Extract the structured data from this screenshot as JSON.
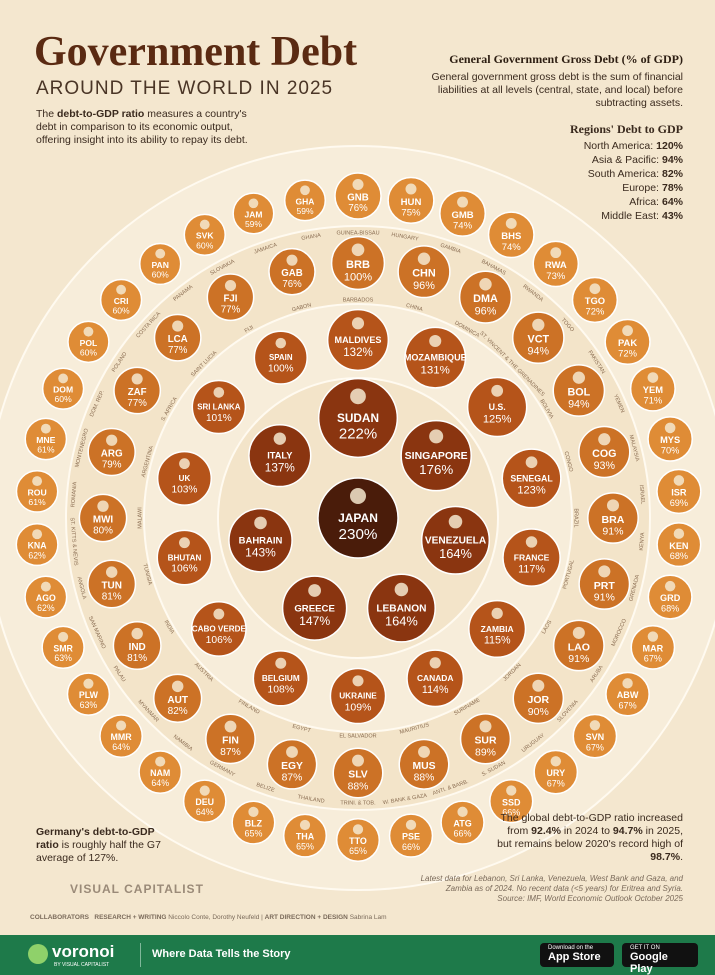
{
  "chart_data": {
    "type": "bubble",
    "title": "Government Debt",
    "subtitle": "AROUND THE WORLD IN 2025",
    "ring_colors": [
      "#4a1c0a",
      "#8a3510",
      "#b5541a",
      "#cc7226",
      "#df8c36"
    ],
    "points": [
      {
        "name": "JAPAN",
        "value": 230,
        "value_label": "230%"
      },
      {
        "name": "SUDAN",
        "value": 222,
        "value_label": "222%"
      },
      {
        "name": "SINGAPORE",
        "value": 176,
        "value_label": "176%"
      },
      {
        "name": "VENEZUELA",
        "value": 164,
        "value_label": "164%"
      },
      {
        "name": "LEBANON",
        "value": 164,
        "value_label": "164%"
      },
      {
        "name": "GREECE",
        "value": 147,
        "value_label": "147%"
      },
      {
        "name": "BAHRAIN",
        "value": 143,
        "value_label": "143%"
      },
      {
        "name": "ITALY",
        "value": 137,
        "value_label": "137%"
      },
      {
        "name": "MALDIVES",
        "value": 132,
        "value_label": "132%"
      },
      {
        "name": "MOZAMBIQUE",
        "value": 131,
        "value_label": "131%"
      },
      {
        "name": "U.S.",
        "value": 125,
        "value_label": "125%"
      },
      {
        "name": "SENEGAL",
        "value": 123,
        "value_label": "123%"
      },
      {
        "name": "FRANCE",
        "value": 117,
        "value_label": "117%"
      },
      {
        "name": "ZAMBIA",
        "value": 115,
        "value_label": "115%"
      },
      {
        "name": "CANADA",
        "value": 114,
        "value_label": "114%"
      },
      {
        "name": "UKRAINE",
        "value": 109,
        "value_label": "109%"
      },
      {
        "name": "BELGIUM",
        "value": 108,
        "value_label": "108%"
      },
      {
        "name": "CABO VERDE",
        "value": 106,
        "value_label": "106%"
      },
      {
        "name": "BHUTAN",
        "value": 106,
        "value_label": "106%"
      },
      {
        "name": "UK",
        "value": 103,
        "value_label": "103%"
      },
      {
        "name": "SRI LANKA",
        "value": 101,
        "value_label": "101%"
      },
      {
        "name": "SPAIN",
        "value": 100,
        "value_label": "100%"
      },
      {
        "code": "BRB",
        "name": "BARBADOS",
        "value": 100,
        "value_label": "100%"
      },
      {
        "code": "CHN",
        "name": "CHINA",
        "value": 96,
        "value_label": "96%"
      },
      {
        "code": "DMA",
        "name": "DOMINICA",
        "value": 96,
        "value_label": "96%"
      },
      {
        "code": "VCT",
        "name": "ST. VINCENT & THE GRENADINES",
        "value": 94,
        "value_label": "94%"
      },
      {
        "code": "BOL",
        "name": "BOLIVIA",
        "value": 94,
        "value_label": "94%"
      },
      {
        "code": "COG",
        "name": "CONGO",
        "value": 93,
        "value_label": "93%"
      },
      {
        "code": "BRA",
        "name": "BRAZIL",
        "value": 91,
        "value_label": "91%"
      },
      {
        "code": "PRT",
        "name": "PORTUGAL",
        "value": 91,
        "value_label": "91%"
      },
      {
        "code": "LAO",
        "name": "LAOS",
        "value": 91,
        "value_label": "91%"
      },
      {
        "code": "JOR",
        "name": "JORDAN",
        "value": 90,
        "value_label": "90%"
      },
      {
        "code": "SUR",
        "name": "SURINAME",
        "value": 89,
        "value_label": "89%"
      },
      {
        "code": "MUS",
        "name": "MAURITIUS",
        "value": 88,
        "value_label": "88%"
      },
      {
        "code": "SLV",
        "name": "EL SALVADOR",
        "value": 88,
        "value_label": "88%"
      },
      {
        "code": "EGY",
        "name": "EGYPT",
        "value": 87,
        "value_label": "87%"
      },
      {
        "code": "FIN",
        "name": "FINLAND",
        "value": 87,
        "value_label": "87%"
      },
      {
        "code": "AUT",
        "name": "AUSTRIA",
        "value": 82,
        "value_label": "82%"
      },
      {
        "code": "IND",
        "name": "INDIA",
        "value": 81,
        "value_label": "81%"
      },
      {
        "code": "TUN",
        "name": "TUNISIA",
        "value": 81,
        "value_label": "81%"
      },
      {
        "code": "MWI",
        "name": "MALAWI",
        "value": 80,
        "value_label": "80%"
      },
      {
        "code": "ARG",
        "name": "ARGENTINA",
        "value": 79,
        "value_label": "79%"
      },
      {
        "code": "ZAF",
        "name": "S. AFRICA",
        "value": 77,
        "value_label": "77%"
      },
      {
        "code": "LCA",
        "name": "SAINT LUCIA",
        "value": 77,
        "value_label": "77%"
      },
      {
        "code": "FJI",
        "name": "FIJI",
        "value": 77,
        "value_label": "77%"
      },
      {
        "code": "GAB",
        "name": "GABON",
        "value": 76,
        "value_label": "76%"
      },
      {
        "code": "GNB",
        "name": "GUINEA-BISSAU",
        "value": 76,
        "value_label": "76%"
      },
      {
        "code": "HUN",
        "name": "HUNGARY",
        "value": 75,
        "value_label": "75%"
      },
      {
        "code": "GMB",
        "name": "GAMBIA",
        "value": 74,
        "value_label": "74%"
      },
      {
        "code": "BHS",
        "name": "BAHAMAS",
        "value": 74,
        "value_label": "74%"
      },
      {
        "code": "RWA",
        "name": "RWANDA",
        "value": 73,
        "value_label": "73%"
      },
      {
        "code": "TGO",
        "name": "TOGO",
        "value": 72,
        "value_label": "72%"
      },
      {
        "code": "PAK",
        "name": "PAKISTAN",
        "value": 72,
        "value_label": "72%"
      },
      {
        "code": "YEM",
        "name": "YEMEN",
        "value": 71,
        "value_label": "71%"
      },
      {
        "code": "MYS",
        "name": "MALAYSIA",
        "value": 70,
        "value_label": "70%"
      },
      {
        "code": "ISR",
        "name": "ISRAEL",
        "value": 69,
        "value_label": "69%"
      },
      {
        "code": "KEN",
        "name": "KENYA",
        "value": 68,
        "value_label": "68%"
      },
      {
        "code": "GRD",
        "name": "GRENADA",
        "value": 68,
        "value_label": "68%"
      },
      {
        "code": "MAR",
        "name": "MOROCCO",
        "value": 67,
        "value_label": "67%"
      },
      {
        "code": "ABW",
        "name": "ARUBA",
        "value": 67,
        "value_label": "67%"
      },
      {
        "code": "SVN",
        "name": "SLOVENIA",
        "value": 67,
        "value_label": "67%"
      },
      {
        "code": "URY",
        "name": "URUGUAY",
        "value": 67,
        "value_label": "67%"
      },
      {
        "code": "SSD",
        "name": "S. SUDAN",
        "value": 66,
        "value_label": "66%"
      },
      {
        "code": "ATG",
        "name": "ANTI. & BARB.",
        "value": 66,
        "value_label": "66%"
      },
      {
        "code": "PSE",
        "name": "W. BANK & GAZA",
        "value": 66,
        "value_label": "66%"
      },
      {
        "code": "TTO",
        "name": "TRINI. & TOB.",
        "value": 65,
        "value_label": "65%"
      },
      {
        "code": "THA",
        "name": "THAILAND",
        "value": 65,
        "value_label": "65%"
      },
      {
        "code": "BLZ",
        "name": "BELIZE",
        "value": 65,
        "value_label": "65%"
      },
      {
        "code": "DEU",
        "name": "GERMANY",
        "value": 64,
        "value_label": "64%"
      },
      {
        "code": "NAM",
        "name": "NAMIBIA",
        "value": 64,
        "value_label": "64%"
      },
      {
        "code": "MMR",
        "name": "MYANMAR",
        "value": 64,
        "value_label": "64%"
      },
      {
        "code": "PLW",
        "name": "PALAU",
        "value": 63,
        "value_label": "63%"
      },
      {
        "code": "SMR",
        "name": "SAN MARINO",
        "value": 63,
        "value_label": "63%"
      },
      {
        "code": "AGO",
        "name": "ANGOLA",
        "value": 62,
        "value_label": "62%"
      },
      {
        "code": "KNA",
        "name": "ST. KITTS & NEVIS",
        "value": 62,
        "value_label": "62%"
      },
      {
        "code": "ROU",
        "name": "ROMANIA",
        "value": 61,
        "value_label": "61%"
      },
      {
        "code": "MNE",
        "name": "MONTENEGRO",
        "value": 61,
        "value_label": "61%"
      },
      {
        "code": "DOM",
        "name": "DOM. REP.",
        "value": 60,
        "value_label": "60%"
      },
      {
        "code": "POL",
        "name": "POLAND",
        "value": 60,
        "value_label": "60%"
      },
      {
        "code": "CRI",
        "name": "COSTA RICA",
        "value": 60,
        "value_label": "60%"
      },
      {
        "code": "PAN",
        "name": "PANAMA",
        "value": 60,
        "value_label": "60%"
      },
      {
        "code": "SVK",
        "name": "SLOVAKIA",
        "value": 60,
        "value_label": "60%"
      },
      {
        "code": "JAM",
        "name": "JAMAICA",
        "value": 59,
        "value_label": "59%"
      },
      {
        "code": "GHA",
        "name": "GHANA",
        "value": 59,
        "value_label": "59%"
      }
    ]
  },
  "intro": [
    "The ",
    "debt-to-GDP ratio",
    " measures a country's debt in comparison to its economic output, offering insight into its ability to repay its debt."
  ],
  "definition": {
    "title": "General Government Gross Debt (% of GDP)",
    "text": "General government gross debt is the sum of financial liabilities at all levels (central, state, and local) before subtracting assets."
  },
  "regions": {
    "title": "Regions' Debt to GDP",
    "rows": [
      [
        "North America:",
        "120%"
      ],
      [
        "Asia & Pacific:",
        "94%"
      ],
      [
        "South America:",
        "82%"
      ],
      [
        "Europe:",
        "78%"
      ],
      [
        "Africa:",
        "64%"
      ],
      [
        "Middle East:",
        "43%"
      ]
    ]
  },
  "germany_note": [
    "Germany's debt-to-GDP ratio",
    " is roughly half the G7 average of 127%."
  ],
  "global_note": [
    "The global debt-to-GDP ratio increased from ",
    "92.4%",
    " in 2024 to ",
    "94.7%",
    " in 2025, but remains below 2020's record high of ",
    "98.7%",
    "."
  ],
  "notes": [
    "Latest data for Lebanon, Sri Lanka, Venezuela, West Bank and Gaza, and Zambia as of 2024. No recent data (<5 years) for Eritrea and Syria.",
    "Source: IMF, World Economic Outlook October 2025"
  ],
  "logo": "VISUAL CAPITALIST",
  "credits": [
    "COLLABORATORS",
    "RESEARCH + WRITING",
    "Niccolo Conte, Dorothy Neufeld",
    "ART DIRECTION + DESIGN",
    "Sabrina Lam"
  ],
  "footer": {
    "brand": "voronoi",
    "brand_sub": "BY VISUAL CAPITALIST",
    "tagline": "Where Data Tells the Story",
    "app_store": [
      "Download on the",
      "App Store"
    ],
    "google_play": [
      "GET IT ON",
      "Google Play"
    ]
  }
}
